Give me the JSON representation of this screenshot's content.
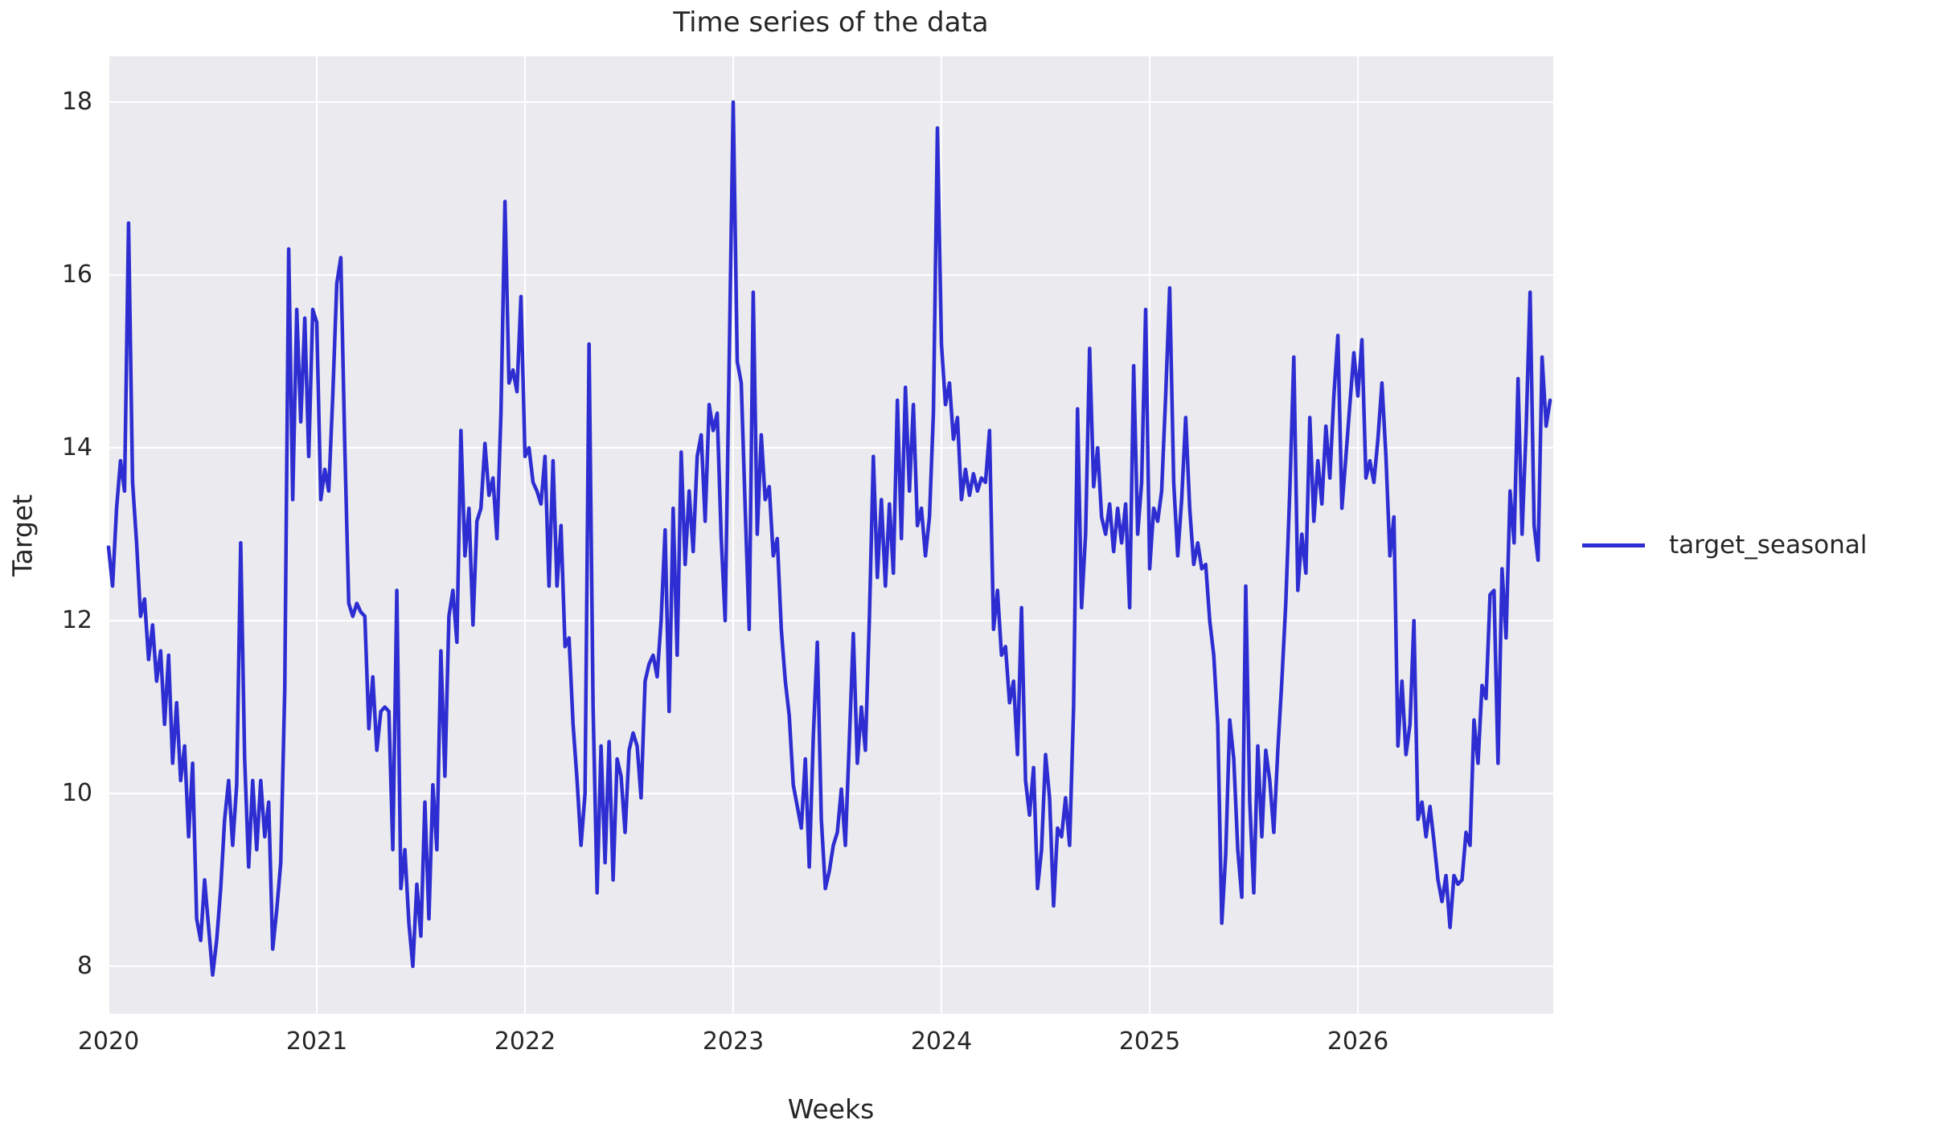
{
  "figure": {
    "title": "Time series of the data",
    "background_color": "#ffffff",
    "plot_background_color": "#ebebef",
    "grid_color": "#ffffff",
    "text_color": "#262626"
  },
  "axes": {
    "x_label": "Weeks",
    "y_label": "Target",
    "x_tick_labels": [
      "2020",
      "2021",
      "2022",
      "2023",
      "2024",
      "2025",
      "2026"
    ],
    "y_tick_labels": [
      "8",
      "10",
      "12",
      "14",
      "16",
      "18"
    ]
  },
  "legend": {
    "label": "target_seasonal",
    "position": "right-outside",
    "line_color": "#2d2dd2"
  },
  "chart_data": {
    "type": "line",
    "title": "Time series of the data",
    "xlabel": "Weeks",
    "ylabel": "Target",
    "series_name": "target_seasonal",
    "line_color": "#2d2dd2",
    "x_unit": "weekly samples starting 2020, 52 per year",
    "x_tick_years": [
      2020,
      2021,
      2022,
      2023,
      2024,
      2025,
      2026
    ],
    "ylim": [
      7.4,
      18.55
    ],
    "xlim_years": [
      2020.0,
      2026.94
    ],
    "grid": true,
    "legend_position": "center right outside",
    "values": [
      12.85,
      12.4,
      13.3,
      13.85,
      13.5,
      16.6,
      13.6,
      12.9,
      12.05,
      12.25,
      11.55,
      11.95,
      11.3,
      11.65,
      10.8,
      11.6,
      10.35,
      11.05,
      10.15,
      10.55,
      9.5,
      10.35,
      8.55,
      8.3,
      9.0,
      8.45,
      7.9,
      8.3,
      8.9,
      9.7,
      10.15,
      9.4,
      10.1,
      12.9,
      10.4,
      9.15,
      10.15,
      9.35,
      10.15,
      9.5,
      9.9,
      8.2,
      8.65,
      9.2,
      11.2,
      16.3,
      13.4,
      15.6,
      14.3,
      15.5,
      13.9,
      15.6,
      15.45,
      13.4,
      13.75,
      13.5,
      14.6,
      15.9,
      16.2,
      14.0,
      12.2,
      12.05,
      12.2,
      12.1,
      12.05,
      10.75,
      11.35,
      10.5,
      10.95,
      11.0,
      10.95,
      9.35,
      12.35,
      8.9,
      9.35,
      8.5,
      8.0,
      8.95,
      8.35,
      9.9,
      8.55,
      10.1,
      9.35,
      11.65,
      10.2,
      12.05,
      12.35,
      11.75,
      14.2,
      12.75,
      13.3,
      11.95,
      13.15,
      13.3,
      14.05,
      13.45,
      13.65,
      12.95,
      14.4,
      16.85,
      14.75,
      14.9,
      14.65,
      15.75,
      13.9,
      14.0,
      13.6,
      13.5,
      13.35,
      13.9,
      12.4,
      13.85,
      12.4,
      13.1,
      11.7,
      11.8,
      10.8,
      10.15,
      9.4,
      10.0,
      15.2,
      11.0,
      8.85,
      10.55,
      9.2,
      10.6,
      9.0,
      10.4,
      10.2,
      9.55,
      10.5,
      10.7,
      10.55,
      9.95,
      11.3,
      11.5,
      11.6,
      11.35,
      12.0,
      13.05,
      10.95,
      13.3,
      11.6,
      13.95,
      12.65,
      13.5,
      12.8,
      13.9,
      14.15,
      13.15,
      14.5,
      14.2,
      14.4,
      12.95,
      12.0,
      15.0,
      18.0,
      15.0,
      14.75,
      13.3,
      11.9,
      15.8,
      13.0,
      14.15,
      13.4,
      13.55,
      12.75,
      12.95,
      11.9,
      11.3,
      10.9,
      10.1,
      9.85,
      9.6,
      10.4,
      9.15,
      10.65,
      11.75,
      9.7,
      8.9,
      9.1,
      9.4,
      9.55,
      10.05,
      9.4,
      10.6,
      11.85,
      10.35,
      11.0,
      10.5,
      12.0,
      13.9,
      12.5,
      13.4,
      12.4,
      13.35,
      12.55,
      14.55,
      12.95,
      14.7,
      13.5,
      14.5,
      13.1,
      13.3,
      12.75,
      13.2,
      14.4,
      17.7,
      15.2,
      14.5,
      14.75,
      14.1,
      14.35,
      13.4,
      13.75,
      13.45,
      13.7,
      13.5,
      13.65,
      13.6,
      14.2,
      11.9,
      12.35,
      11.6,
      11.7,
      11.05,
      11.3,
      10.45,
      12.15,
      10.15,
      9.75,
      10.3,
      8.9,
      9.35,
      10.45,
      9.95,
      8.7,
      9.6,
      9.5,
      9.95,
      9.4,
      11.0,
      14.45,
      12.15,
      13.0,
      15.15,
      13.55,
      14.0,
      13.2,
      13.0,
      13.35,
      12.8,
      13.3,
      12.9,
      13.35,
      12.15,
      14.95,
      13.0,
      13.6,
      15.6,
      12.6,
      13.3,
      13.15,
      13.5,
      14.6,
      15.85,
      13.6,
      12.75,
      13.4,
      14.35,
      13.3,
      12.65,
      12.9,
      12.6,
      12.65,
      12.0,
      11.6,
      10.8,
      8.5,
      9.3,
      10.85,
      10.4,
      9.35,
      8.8,
      12.4,
      9.9,
      8.85,
      10.55,
      9.5,
      10.5,
      10.15,
      9.55,
      10.5,
      11.3,
      12.2,
      13.5,
      15.05,
      12.35,
      13.0,
      12.55,
      14.35,
      13.15,
      13.85,
      13.35,
      14.25,
      13.65,
      14.6,
      15.3,
      13.3,
      13.9,
      14.5,
      15.1,
      14.6,
      15.25,
      13.65,
      13.85,
      13.6,
      14.1,
      14.75,
      13.9,
      12.75,
      13.2,
      10.55,
      11.3,
      10.45,
      10.8,
      12.0,
      9.7,
      9.9,
      9.5,
      9.85,
      9.45,
      9.0,
      8.75,
      9.05,
      8.45,
      9.05,
      8.95,
      9.0,
      9.55,
      9.4,
      10.85,
      10.35,
      11.25,
      11.1,
      12.3,
      12.35,
      10.35,
      12.6,
      11.8,
      13.5,
      12.9,
      14.8,
      13.0,
      14.2,
      15.8,
      13.1,
      12.7,
      15.05,
      14.25,
      14.55
    ]
  }
}
